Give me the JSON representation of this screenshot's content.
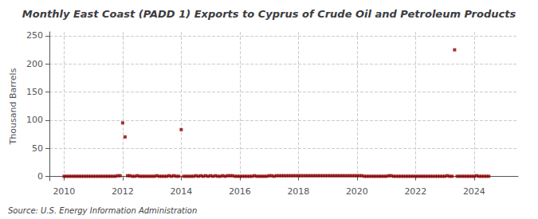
{
  "chart_data": {
    "type": "scatter",
    "title": "Monthly East Coast (PADD 1) Exports to Cyprus of Crude Oil and Petroleum Products",
    "ylabel": "Thousand Barrels",
    "annotation": "Source: U.S. Energy Information Administration",
    "color": "#8b0000",
    "marker": "square",
    "grid": true,
    "xlim": [
      2009.5,
      2025.5
    ],
    "xticks": [
      2010,
      2012,
      2014,
      2016,
      2018,
      2020,
      2022,
      2024
    ],
    "ylim": [
      -8,
      257
    ],
    "yticks": [
      0,
      50,
      100,
      150,
      200,
      250
    ],
    "x": [
      2010.0,
      2010.083,
      2010.167,
      2010.25,
      2010.333,
      2010.417,
      2010.5,
      2010.583,
      2010.667,
      2010.75,
      2010.833,
      2010.917,
      2011.0,
      2011.083,
      2011.167,
      2011.25,
      2011.333,
      2011.417,
      2011.5,
      2011.583,
      2011.667,
      2011.75,
      2011.833,
      2011.917,
      2012.0,
      2012.083,
      2012.167,
      2012.25,
      2012.333,
      2012.417,
      2012.5,
      2012.583,
      2012.667,
      2012.75,
      2012.833,
      2012.917,
      2013.0,
      2013.083,
      2013.167,
      2013.25,
      2013.333,
      2013.417,
      2013.5,
      2013.583,
      2013.667,
      2013.75,
      2013.833,
      2013.917,
      2014.0,
      2014.083,
      2014.167,
      2014.25,
      2014.333,
      2014.417,
      2014.5,
      2014.583,
      2014.667,
      2014.75,
      2014.833,
      2014.917,
      2015.0,
      2015.083,
      2015.167,
      2015.25,
      2015.333,
      2015.417,
      2015.5,
      2015.583,
      2015.667,
      2015.75,
      2015.833,
      2015.917,
      2016.0,
      2016.083,
      2016.167,
      2016.25,
      2016.333,
      2016.417,
      2016.5,
      2016.583,
      2016.667,
      2016.75,
      2016.833,
      2016.917,
      2017.0,
      2017.083,
      2017.167,
      2017.25,
      2017.333,
      2017.417,
      2017.5,
      2017.583,
      2017.667,
      2017.75,
      2017.833,
      2017.917,
      2018.0,
      2018.083,
      2018.167,
      2018.25,
      2018.333,
      2018.417,
      2018.5,
      2018.583,
      2018.667,
      2018.75,
      2018.833,
      2018.917,
      2019.0,
      2019.083,
      2019.167,
      2019.25,
      2019.333,
      2019.417,
      2019.5,
      2019.583,
      2019.667,
      2019.75,
      2019.833,
      2019.917,
      2020.0,
      2020.083,
      2020.167,
      2020.25,
      2020.333,
      2020.417,
      2020.5,
      2020.583,
      2020.667,
      2020.75,
      2020.833,
      2020.917,
      2021.0,
      2021.083,
      2021.167,
      2021.25,
      2021.333,
      2021.417,
      2021.5,
      2021.583,
      2021.667,
      2021.75,
      2021.833,
      2021.917,
      2022.0,
      2022.083,
      2022.167,
      2022.25,
      2022.333,
      2022.417,
      2022.5,
      2022.583,
      2022.667,
      2022.75,
      2022.833,
      2022.917,
      2023.0,
      2023.083,
      2023.167,
      2023.25,
      2023.333,
      2023.417,
      2023.5,
      2023.583,
      2023.667,
      2023.75,
      2023.833,
      2023.917,
      2024.0,
      2024.083,
      2024.167,
      2024.25,
      2024.333,
      2024.417,
      2024.5
    ],
    "values": [
      0,
      0,
      0,
      0,
      0,
      0,
      0,
      0,
      0,
      0,
      0,
      0,
      0,
      0,
      0,
      0,
      0,
      0,
      0,
      0,
      0,
      0,
      1,
      1,
      95,
      70,
      1,
      1,
      0,
      0,
      1,
      0,
      0,
      0,
      0,
      0,
      0,
      0,
      1,
      0,
      0,
      0,
      0,
      1,
      0,
      1,
      0,
      0,
      83,
      0,
      0,
      0,
      0,
      0,
      1,
      0,
      1,
      0,
      1,
      0,
      1,
      0,
      1,
      0,
      0,
      1,
      0,
      1,
      1,
      1,
      0,
      0,
      0,
      0,
      0,
      0,
      0,
      0,
      1,
      0,
      0,
      0,
      0,
      0,
      1,
      1,
      0,
      1,
      1,
      1,
      1,
      1,
      1,
      1,
      1,
      1,
      1,
      1,
      1,
      1,
      1,
      1,
      1,
      1,
      1,
      1,
      1,
      1,
      1,
      1,
      1,
      1,
      1,
      1,
      1,
      1,
      1,
      1,
      1,
      1,
      1,
      1,
      1,
      0,
      0,
      0,
      0,
      0,
      0,
      0,
      0,
      0,
      0,
      1,
      1,
      0,
      0,
      0,
      0,
      0,
      0,
      0,
      0,
      0,
      0,
      0,
      0,
      0,
      0,
      0,
      0,
      0,
      0,
      0,
      0,
      0,
      0,
      1,
      0,
      0,
      225,
      0,
      0,
      0,
      0,
      0,
      0,
      0,
      0,
      1,
      0,
      0,
      0,
      0,
      0
    ]
  }
}
